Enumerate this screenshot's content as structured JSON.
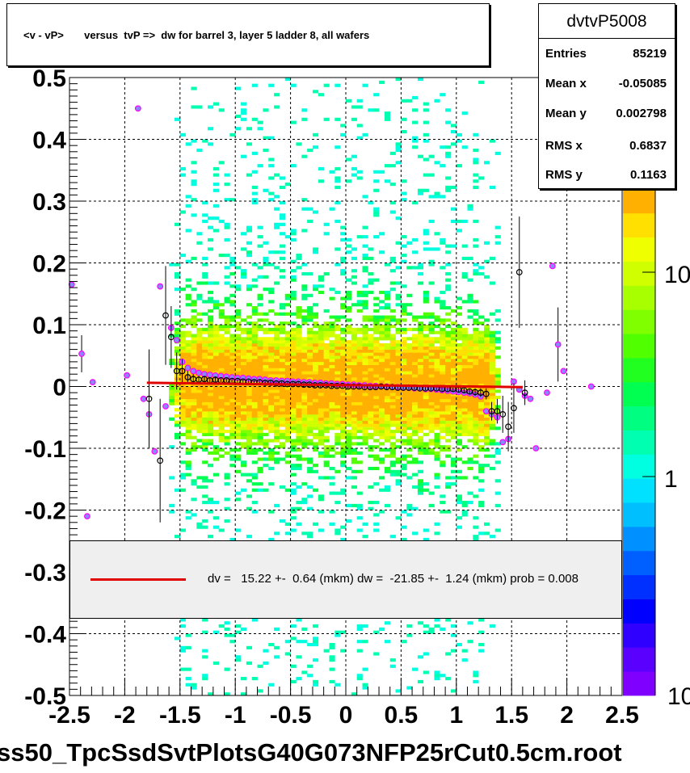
{
  "title": "<v - vP>       versus  tvP =>  dw for barrel 3, layer 5 ladder 8, all wafers",
  "stats": {
    "name": "dvtvP5008",
    "rows": [
      {
        "key": "Entries",
        "value": "85219"
      },
      {
        "key": "Mean x",
        "value": "-0.05085"
      },
      {
        "key": "Mean y",
        "value": "0.002798"
      },
      {
        "key": "RMS x",
        "value": "0.6837"
      },
      {
        "key": "RMS y",
        "value": "0.1163"
      }
    ]
  },
  "legend": {
    "text": "dv =   15.22 +-  0.64 (mkm) dw =  -21.85 +-  1.24 (mkm) prob = 0.008",
    "line_color": "#e00000"
  },
  "file_label": "ss50_TpcSsdSvtPlotsG40G073NFP25rCut0.5cm.root",
  "colors": {
    "fit_line": "#e00000",
    "profile_black": "#000000",
    "profile_magenta": "#ff00ff",
    "profile_fill": "#8888ff",
    "palette": [
      "#7f00ff",
      "#5a00ff",
      "#2f00ff",
      "#0000ff",
      "#0030ff",
      "#0060ff",
      "#0090ff",
      "#00bfff",
      "#00e0ff",
      "#00ffe0",
      "#00ffb0",
      "#00ff80",
      "#00ff50",
      "#20ff20",
      "#50ff00",
      "#80ff00",
      "#a8ff00",
      "#d0ff00",
      "#f0ff00",
      "#ffe000",
      "#ffb000"
    ]
  },
  "chart_data": {
    "type": "heatmap",
    "title": "<v - vP>       versus  tvP =>  dw for barrel 3, layer 5 ladder 8, all wafers",
    "xlim": [
      -2.5,
      2.5
    ],
    "ylim": [
      -0.5,
      0.5
    ],
    "x_ticks": [
      "-2.5",
      "-2",
      "-1.5",
      "-1",
      "-0.5",
      "0",
      "0.5",
      "1",
      "1.5",
      "2",
      "2.5"
    ],
    "y_ticks": [
      "-0.5",
      "-0.4",
      "-0.3",
      "-0.2",
      "-0.1",
      "0",
      "0.1",
      "0.2",
      "0.3",
      "0.4",
      "0.5"
    ],
    "z_scale": "log",
    "z_tick_labels": [
      "1",
      "10"
    ],
    "grid": true,
    "fit_line": {
      "x": [
        -1.8,
        1.6
      ],
      "y": [
        0.006,
        -0.001
      ]
    },
    "profile_black": [
      {
        "x": -1.78,
        "y": -0.02,
        "err": 0.08
      },
      {
        "x": -1.68,
        "y": -0.12,
        "err": 0.1
      },
      {
        "x": -1.63,
        "y": 0.115,
        "err": 0.08
      },
      {
        "x": -1.58,
        "y": 0.08,
        "err": 0.05
      },
      {
        "x": -1.53,
        "y": 0.025,
        "err": 0.03
      },
      {
        "x": -1.48,
        "y": 0.025,
        "err": 0.02
      },
      {
        "x": -1.43,
        "y": 0.015,
        "err": 0.01
      },
      {
        "x": -1.38,
        "y": 0.012,
        "err": 0.008
      },
      {
        "x": -1.33,
        "y": 0.011,
        "err": 0.006
      },
      {
        "x": -1.28,
        "y": 0.012,
        "err": 0.005
      },
      {
        "x": -1.23,
        "y": 0.01,
        "err": 0.004
      },
      {
        "x": -1.18,
        "y": 0.011,
        "err": 0.004
      },
      {
        "x": -1.13,
        "y": 0.01,
        "err": 0.003
      },
      {
        "x": -1.08,
        "y": 0.01,
        "err": 0.003
      },
      {
        "x": -1.03,
        "y": 0.009,
        "err": 0.003
      },
      {
        "x": -0.98,
        "y": 0.009,
        "err": 0.003
      },
      {
        "x": -0.93,
        "y": 0.008,
        "err": 0.003
      },
      {
        "x": -0.88,
        "y": 0.008,
        "err": 0.003
      },
      {
        "x": -0.83,
        "y": 0.007,
        "err": 0.003
      },
      {
        "x": -0.78,
        "y": 0.007,
        "err": 0.003
      },
      {
        "x": -0.73,
        "y": 0.006,
        "err": 0.003
      },
      {
        "x": -0.68,
        "y": 0.006,
        "err": 0.003
      },
      {
        "x": -0.63,
        "y": 0.005,
        "err": 0.003
      },
      {
        "x": -0.58,
        "y": 0.005,
        "err": 0.003
      },
      {
        "x": -0.53,
        "y": 0.004,
        "err": 0.003
      },
      {
        "x": -0.48,
        "y": 0.004,
        "err": 0.003
      },
      {
        "x": -0.43,
        "y": 0.004,
        "err": 0.003
      },
      {
        "x": -0.38,
        "y": 0.003,
        "err": 0.003
      },
      {
        "x": -0.33,
        "y": 0.003,
        "err": 0.003
      },
      {
        "x": -0.28,
        "y": 0.002,
        "err": 0.003
      },
      {
        "x": -0.23,
        "y": 0.002,
        "err": 0.003
      },
      {
        "x": -0.18,
        "y": 0.002,
        "err": 0.003
      },
      {
        "x": -0.13,
        "y": 0.001,
        "err": 0.003
      },
      {
        "x": -0.08,
        "y": 0.001,
        "err": 0.003
      },
      {
        "x": -0.03,
        "y": 0.001,
        "err": 0.003
      },
      {
        "x": 0.02,
        "y": 0.0,
        "err": 0.003
      },
      {
        "x": 0.07,
        "y": 0.0,
        "err": 0.003
      },
      {
        "x": 0.12,
        "y": 0.0,
        "err": 0.003
      },
      {
        "x": 0.17,
        "y": -0.001,
        "err": 0.003
      },
      {
        "x": 0.22,
        "y": -0.001,
        "err": 0.003
      },
      {
        "x": 0.27,
        "y": -0.001,
        "err": 0.003
      },
      {
        "x": 0.32,
        "y": 0.0,
        "err": 0.003
      },
      {
        "x": 0.37,
        "y": -0.001,
        "err": 0.003
      },
      {
        "x": 0.42,
        "y": -0.001,
        "err": 0.003
      },
      {
        "x": 0.47,
        "y": -0.002,
        "err": 0.003
      },
      {
        "x": 0.52,
        "y": -0.002,
        "err": 0.003
      },
      {
        "x": 0.57,
        "y": -0.002,
        "err": 0.003
      },
      {
        "x": 0.62,
        "y": -0.002,
        "err": 0.003
      },
      {
        "x": 0.67,
        "y": -0.003,
        "err": 0.003
      },
      {
        "x": 0.72,
        "y": -0.003,
        "err": 0.003
      },
      {
        "x": 0.77,
        "y": -0.003,
        "err": 0.003
      },
      {
        "x": 0.82,
        "y": -0.003,
        "err": 0.003
      },
      {
        "x": 0.87,
        "y": -0.004,
        "err": 0.003
      },
      {
        "x": 0.92,
        "y": -0.004,
        "err": 0.003
      },
      {
        "x": 0.97,
        "y": -0.004,
        "err": 0.004
      },
      {
        "x": 1.02,
        "y": -0.005,
        "err": 0.004
      },
      {
        "x": 1.07,
        "y": -0.006,
        "err": 0.004
      },
      {
        "x": 1.12,
        "y": -0.008,
        "err": 0.005
      },
      {
        "x": 1.17,
        "y": -0.009,
        "err": 0.006
      },
      {
        "x": 1.22,
        "y": -0.01,
        "err": 0.007
      },
      {
        "x": 1.27,
        "y": -0.012,
        "err": 0.009
      },
      {
        "x": 1.32,
        "y": -0.04,
        "err": 0.015
      },
      {
        "x": 1.37,
        "y": -0.04,
        "err": 0.02
      },
      {
        "x": 1.42,
        "y": -0.045,
        "err": 0.03
      },
      {
        "x": 1.47,
        "y": -0.065,
        "err": 0.04
      },
      {
        "x": 1.52,
        "y": -0.035,
        "err": 0.04
      },
      {
        "x": 1.57,
        "y": 0.185,
        "err": 0.09
      },
      {
        "x": 1.62,
        "y": -0.01,
        "err": 0.02
      }
    ],
    "profile_magenta": [
      {
        "x": -2.48,
        "y": 0.165
      },
      {
        "x": -2.39,
        "y": 0.053,
        "err": 0.03
      },
      {
        "x": -2.34,
        "y": -0.21
      },
      {
        "x": -2.29,
        "y": 0.007
      },
      {
        "x": -1.98,
        "y": 0.018
      },
      {
        "x": -1.88,
        "y": 0.45
      },
      {
        "x": -1.83,
        "y": -0.02
      },
      {
        "x": -1.78,
        "y": -0.045
      },
      {
        "x": -1.73,
        "y": -0.105
      },
      {
        "x": -1.68,
        "y": 0.162
      },
      {
        "x": -1.63,
        "y": -0.032
      },
      {
        "x": -1.58,
        "y": 0.095
      },
      {
        "x": -1.53,
        "y": 0.075
      },
      {
        "x": -1.48,
        "y": 0.04
      },
      {
        "x": -1.43,
        "y": 0.03
      },
      {
        "x": -1.38,
        "y": 0.025
      },
      {
        "x": -1.33,
        "y": 0.022
      },
      {
        "x": -1.28,
        "y": 0.02
      },
      {
        "x": -1.23,
        "y": 0.019
      },
      {
        "x": -1.18,
        "y": 0.018
      },
      {
        "x": -1.13,
        "y": 0.017
      },
      {
        "x": -1.08,
        "y": 0.016
      },
      {
        "x": -1.03,
        "y": 0.015
      },
      {
        "x": -0.98,
        "y": 0.014
      },
      {
        "x": -0.93,
        "y": 0.014
      },
      {
        "x": -0.88,
        "y": 0.013
      },
      {
        "x": -0.83,
        "y": 0.012
      },
      {
        "x": -0.78,
        "y": 0.012
      },
      {
        "x": -0.73,
        "y": 0.011
      },
      {
        "x": -0.68,
        "y": 0.01
      },
      {
        "x": -0.63,
        "y": 0.01
      },
      {
        "x": -0.58,
        "y": 0.009
      },
      {
        "x": -0.53,
        "y": 0.009
      },
      {
        "x": -0.48,
        "y": 0.008
      },
      {
        "x": -0.43,
        "y": 0.008
      },
      {
        "x": -0.38,
        "y": 0.007
      },
      {
        "x": -0.33,
        "y": 0.007
      },
      {
        "x": -0.28,
        "y": 0.006
      },
      {
        "x": -0.23,
        "y": 0.006
      },
      {
        "x": -0.18,
        "y": 0.005
      },
      {
        "x": -0.13,
        "y": 0.005
      },
      {
        "x": -0.08,
        "y": 0.004
      },
      {
        "x": -0.03,
        "y": 0.004
      },
      {
        "x": 0.02,
        "y": 0.003
      },
      {
        "x": 0.07,
        "y": 0.003
      },
      {
        "x": 0.12,
        "y": 0.002
      },
      {
        "x": 0.17,
        "y": 0.002
      },
      {
        "x": 0.22,
        "y": 0.001
      },
      {
        "x": 0.27,
        "y": 0.001
      },
      {
        "x": 0.32,
        "y": 0.0
      },
      {
        "x": 0.37,
        "y": 0.0
      },
      {
        "x": 0.42,
        "y": -0.001
      },
      {
        "x": 0.47,
        "y": -0.001
      },
      {
        "x": 0.52,
        "y": -0.002
      },
      {
        "x": 0.57,
        "y": -0.002
      },
      {
        "x": 0.62,
        "y": -0.003
      },
      {
        "x": 0.67,
        "y": -0.003
      },
      {
        "x": 0.72,
        "y": -0.004
      },
      {
        "x": 0.77,
        "y": -0.004
      },
      {
        "x": 0.82,
        "y": -0.005
      },
      {
        "x": 0.87,
        "y": -0.006
      },
      {
        "x": 0.92,
        "y": -0.007
      },
      {
        "x": 0.97,
        "y": -0.008
      },
      {
        "x": 1.02,
        "y": -0.009
      },
      {
        "x": 1.07,
        "y": -0.01
      },
      {
        "x": 1.12,
        "y": -0.011
      },
      {
        "x": 1.17,
        "y": -0.013
      },
      {
        "x": 1.22,
        "y": -0.016
      },
      {
        "x": 1.27,
        "y": -0.04
      },
      {
        "x": 1.32,
        "y": -0.045
      },
      {
        "x": 1.37,
        "y": -0.05
      },
      {
        "x": 1.42,
        "y": -0.09
      },
      {
        "x": 1.47,
        "y": -0.085
      },
      {
        "x": 1.52,
        "y": 0.008
      },
      {
        "x": 1.57,
        "y": -0.005
      },
      {
        "x": 1.62,
        "y": -0.015
      },
      {
        "x": 1.67,
        "y": -0.02
      },
      {
        "x": 1.72,
        "y": -0.1
      },
      {
        "x": 1.82,
        "y": -0.01
      },
      {
        "x": 1.87,
        "y": 0.195
      },
      {
        "x": 1.92,
        "y": 0.068,
        "err": 0.06
      },
      {
        "x": 1.97,
        "y": 0.025
      },
      {
        "x": 2.22,
        "y": 0.0
      }
    ]
  }
}
